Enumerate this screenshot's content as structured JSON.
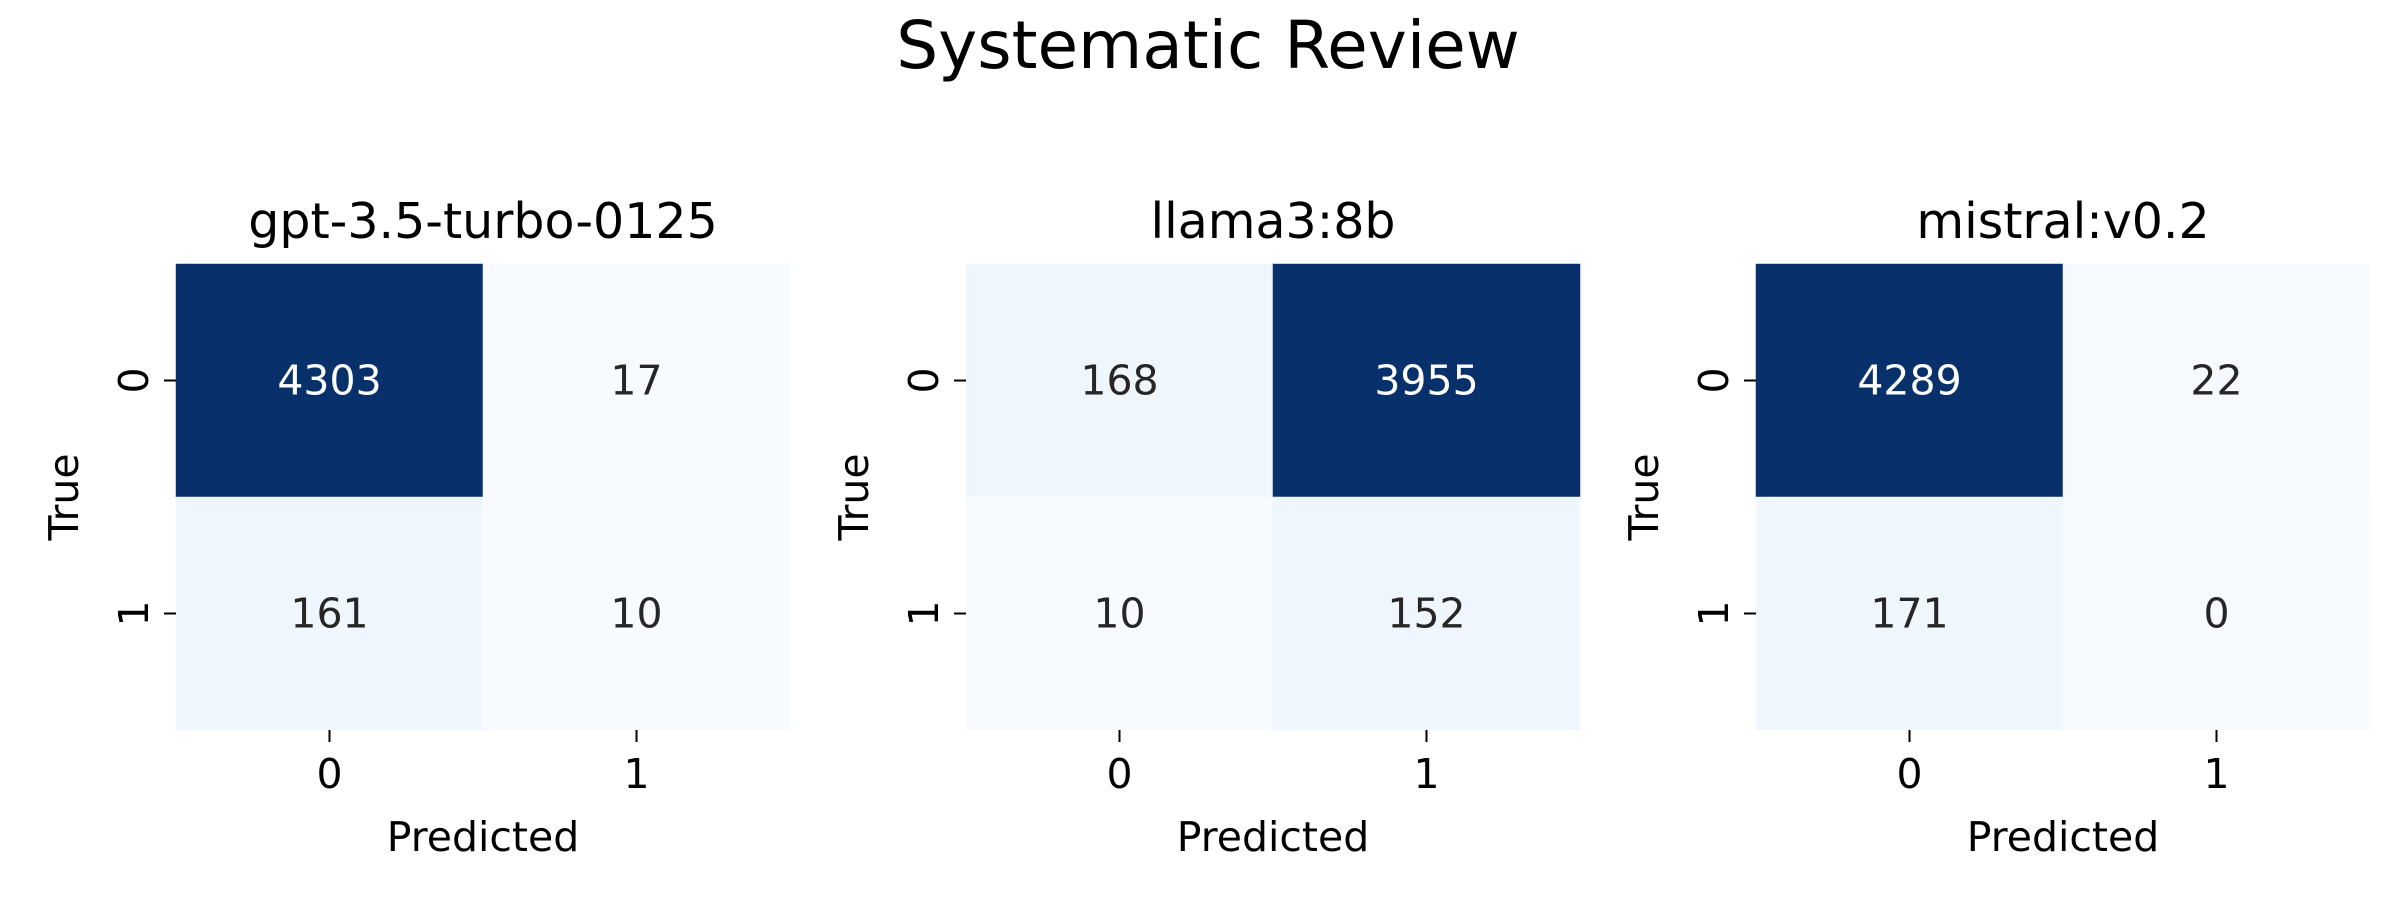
{
  "title": "Systematic Review",
  "chart_data": [
    {
      "type": "heatmap",
      "title": "gpt-3.5-turbo-0125",
      "xlabel": "Predicted",
      "ylabel": "True",
      "x_ticks": [
        "0",
        "1"
      ],
      "y_ticks": [
        "0",
        "1"
      ],
      "matrix": [
        [
          4303,
          17
        ],
        [
          161,
          10
        ]
      ],
      "colormap": "Blues",
      "colorbar": false
    },
    {
      "type": "heatmap",
      "title": "llama3:8b",
      "xlabel": "Predicted",
      "ylabel": "True",
      "x_ticks": [
        "0",
        "1"
      ],
      "y_ticks": [
        "0",
        "1"
      ],
      "matrix": [
        [
          168,
          3955
        ],
        [
          10,
          152
        ]
      ],
      "colormap": "Blues",
      "colorbar": false
    },
    {
      "type": "heatmap",
      "title": "mistral:v0.2",
      "xlabel": "Predicted",
      "ylabel": "True",
      "x_ticks": [
        "0",
        "1"
      ],
      "y_ticks": [
        "0",
        "1"
      ],
      "matrix": [
        [
          4289,
          22
        ],
        [
          171,
          0
        ]
      ],
      "colormap": "Blues",
      "colorbar": false
    }
  ],
  "colors": {
    "low": "#f7fbff",
    "high": "#08306b",
    "text_dark": "#262626",
    "text_light": "#ffffff"
  }
}
